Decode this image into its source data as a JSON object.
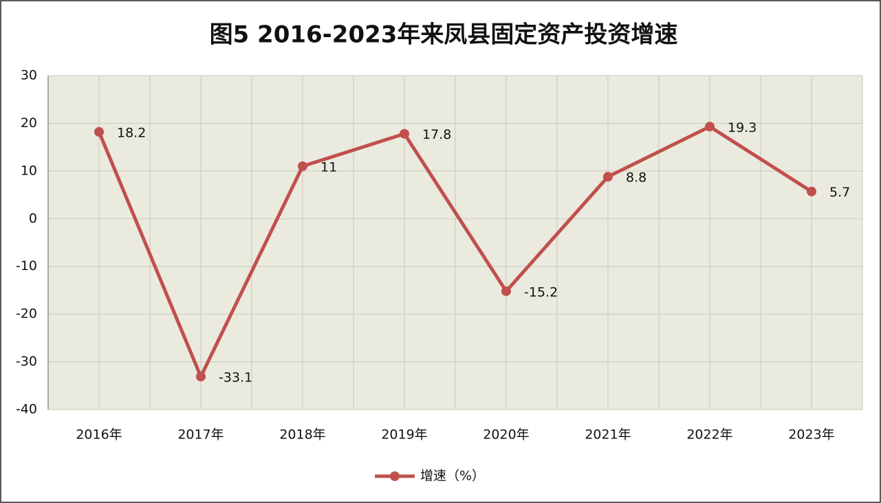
{
  "chart_data": {
    "type": "line",
    "title": "图5 2016-2023年来凤县固定资产投资增速",
    "categories": [
      "2016年",
      "2017年",
      "2018年",
      "2019年",
      "2020年",
      "2021年",
      "2022年",
      "2023年"
    ],
    "series": [
      {
        "name": "增速（%）",
        "color": "#c0504d",
        "values": [
          18.2,
          -33.1,
          11,
          17.8,
          -15.2,
          8.8,
          19.3,
          5.7
        ]
      }
    ],
    "ylim": [
      -40,
      30
    ],
    "yticks": [
      30,
      20,
      10,
      0,
      -10,
      -20,
      -30,
      -40
    ],
    "grid": true,
    "legend": "bottom"
  }
}
